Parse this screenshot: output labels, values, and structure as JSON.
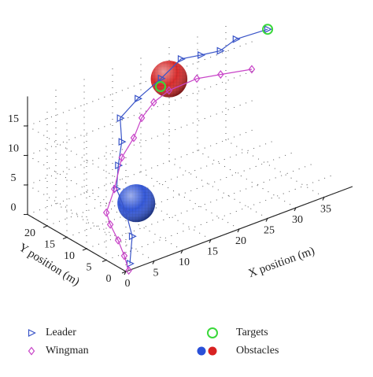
{
  "chart_data": {
    "type": "line3d",
    "xlabel": "X position (m)",
    "ylabel": "Y position (m)",
    "xlim": [
      0,
      40
    ],
    "xticks": [
      0,
      5,
      10,
      15,
      20,
      25,
      30,
      35
    ],
    "ylim": [
      0,
      25
    ],
    "yticks": [
      0,
      5,
      10,
      15,
      20
    ],
    "zlim": [
      0,
      20
    ],
    "zticks": [
      0,
      5,
      10,
      15
    ],
    "grid": true,
    "series": [
      {
        "name": "Leader",
        "color": "#3a55c8",
        "marker": "triangle",
        "x": [
          0.7,
          2.5,
          3.5,
          3.9,
          5.6,
          7.6,
          9.4,
          16.0,
          20.8,
          25.0,
          28.5,
          31.9,
          34.0,
          38.9
        ],
        "y": [
          0,
          2,
          5,
          8,
          10,
          12,
          15,
          20,
          21,
          22,
          22,
          22,
          21,
          20
        ],
        "z": [
          1.1,
          4.3,
          6.8,
          9.5,
          12.1,
          14.6,
          16.8,
          15.8,
          17.1,
          18.5,
          17.9,
          17.4,
          19.0,
          19.3
        ]
      },
      {
        "name": "Wingman",
        "color": "#c844c8",
        "marker": "diamond",
        "x": [
          0.5,
          1.1,
          2.1,
          2.1,
          2.8,
          5.6,
          8.3,
          11.8,
          14.6,
          18.1,
          21.5,
          27.1,
          31.3,
          36.8
        ],
        "y": [
          0,
          2,
          5,
          7,
          9,
          11,
          13,
          15,
          17,
          19,
          20,
          21,
          21,
          21
        ],
        "z": [
          0,
          1.5,
          2.6,
          4.5,
          5.5,
          7.7,
          11.3,
          12.6,
          14.2,
          14.8,
          15.2,
          14.8,
          14.0,
          12.9
        ]
      }
    ],
    "targets": {
      "name": "Targets",
      "color": "#3ad83a",
      "x": [
        38.9,
        20
      ],
      "y": [
        20,
        20
      ],
      "z": [
        19.3,
        16.4
      ]
    },
    "obstacles": {
      "name": "Obstacles",
      "colors": [
        "#2a50d8",
        "#d82222"
      ],
      "x": [
        6.0,
        22.2
      ],
      "y": [
        6,
        21
      ],
      "z": [
        7.1,
        16.5
      ],
      "r": [
        3.2,
        3.1
      ]
    }
  }
}
